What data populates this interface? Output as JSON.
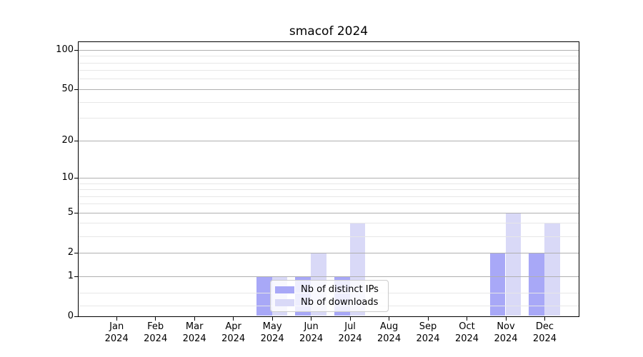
{
  "figure": {
    "background": "#ffffff",
    "frame_color": "#000000",
    "grid_major_color": "#b0b0b0",
    "grid_minor_color": "#e7e7e7",
    "legend_border_color": "#cccccc"
  },
  "chart_data": {
    "type": "bar",
    "title": "smacof 2024",
    "categories": [
      "Jan 2024",
      "Feb 2024",
      "Mar 2024",
      "Apr 2024",
      "May 2024",
      "Jun 2024",
      "Jul 2024",
      "Aug 2024",
      "Sep 2024",
      "Oct 2024",
      "Nov 2024",
      "Dec 2024"
    ],
    "series": [
      {
        "name": "Nb of distinct IPs",
        "color": "#a8a8f7",
        "values": [
          0,
          0,
          0,
          0,
          1,
          1,
          1,
          0,
          0,
          0,
          2,
          2
        ]
      },
      {
        "name": "Nb of downloads",
        "color": "#d9d9f7",
        "values": [
          0,
          0,
          0,
          0,
          1,
          2,
          4,
          0,
          0,
          0,
          5,
          4
        ]
      }
    ],
    "yscale": "log10(value+1)",
    "y_major_ticks": [
      100,
      50,
      20,
      10,
      5,
      2,
      1,
      0
    ],
    "y_minor_gridlines": [
      0.2,
      0.5,
      3,
      4,
      6,
      7,
      8,
      9,
      30,
      40,
      60,
      70,
      80,
      90
    ],
    "ylim": [
      0,
      115
    ],
    "xlabel": "",
    "ylabel": "",
    "grid": true,
    "grid_above_bars": true,
    "legend_position": "lower-center-left inside plot"
  }
}
